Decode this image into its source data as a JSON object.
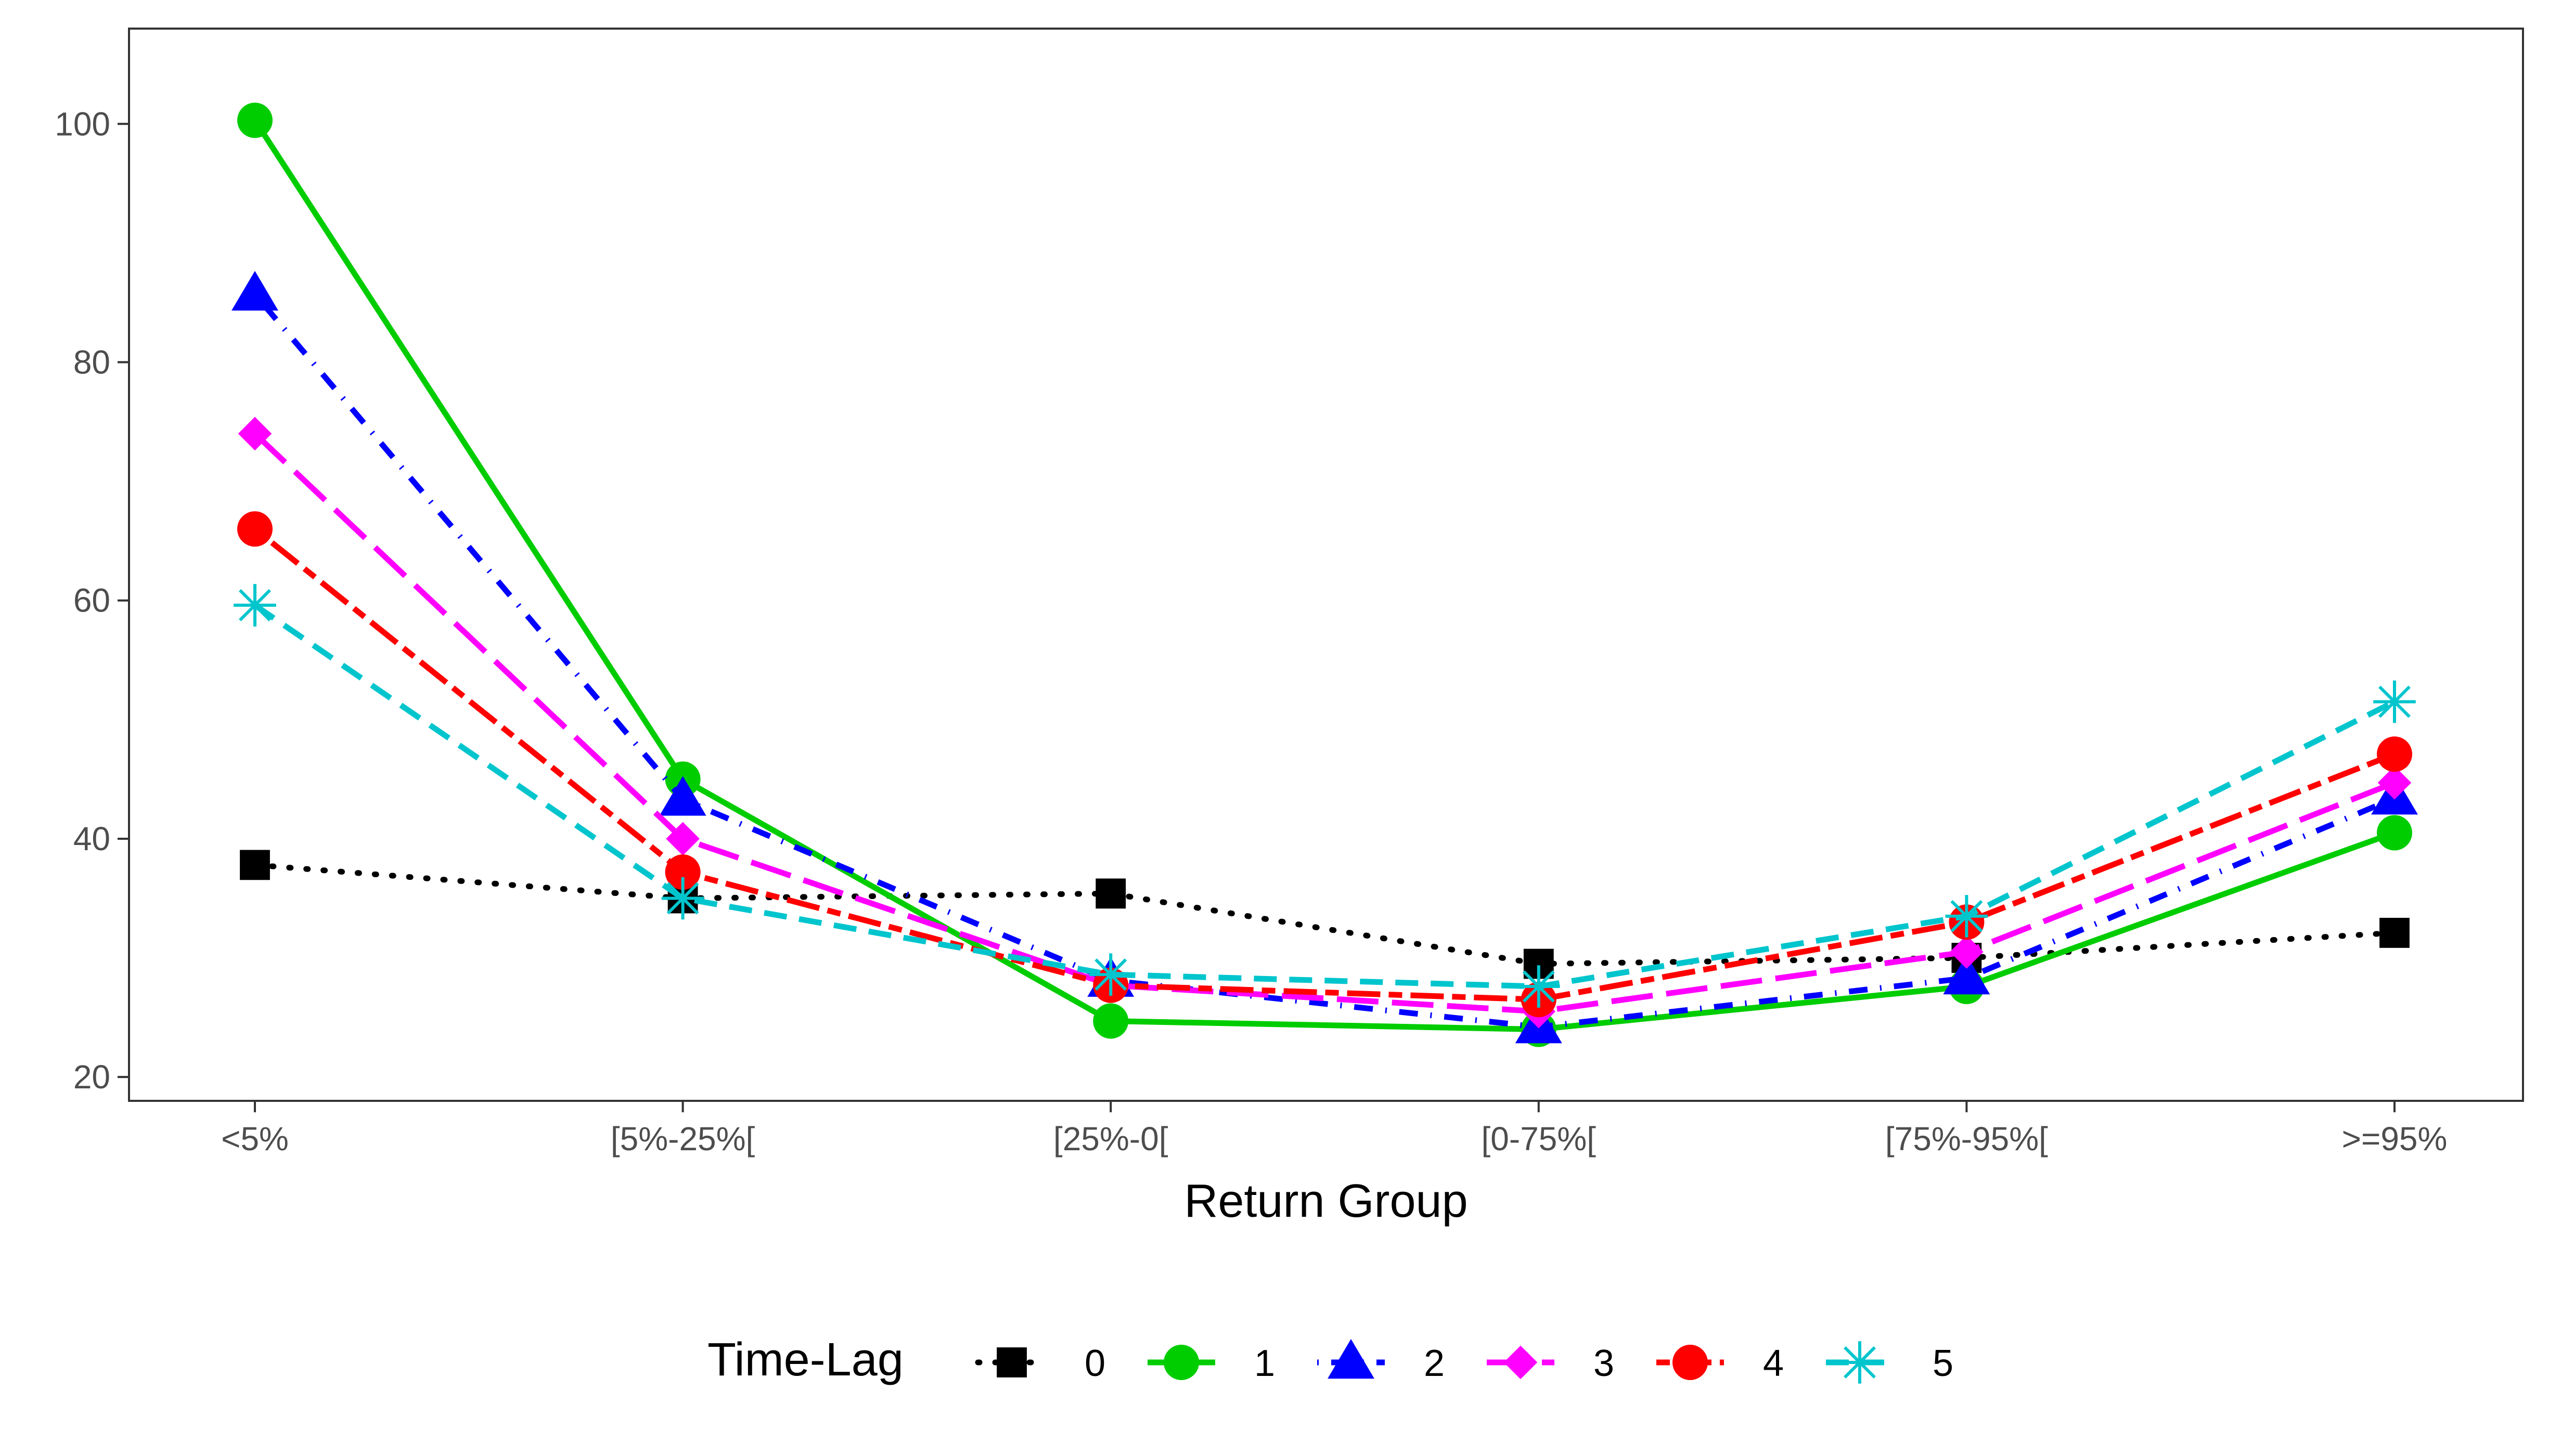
{
  "chart_data": {
    "type": "line",
    "xlabel": "Return Group",
    "ylabel": "",
    "categories": [
      "<5%",
      "[5%-25%[",
      "[25%-0[",
      "[0-75%[",
      "[75%-95%[",
      ">=95%"
    ],
    "ylim": [
      18,
      108
    ],
    "yticks": [
      20,
      40,
      60,
      80,
      100
    ],
    "grid": false,
    "legend": {
      "title": "Time-Lag",
      "position": "bottom"
    },
    "series": [
      {
        "name": "0",
        "color": "#000000",
        "marker": "square",
        "dash": "dotted",
        "values": [
          37.8,
          35.0,
          35.4,
          29.5,
          30.0,
          32.1
        ]
      },
      {
        "name": "1",
        "color": "#00cd00",
        "marker": "circle",
        "dash": "solid",
        "values": [
          100.3,
          45.0,
          24.7,
          24.0,
          27.6,
          40.5
        ]
      },
      {
        "name": "2",
        "color": "#0000ff",
        "marker": "triangle",
        "dash": "dotdash",
        "values": [
          85.7,
          43.3,
          28.1,
          24.2,
          28.3,
          43.4
        ]
      },
      {
        "name": "3",
        "color": "#ff00ff",
        "marker": "diamond",
        "dash": "longdash",
        "values": [
          74.0,
          40.0,
          27.7,
          25.5,
          30.5,
          44.7
        ]
      },
      {
        "name": "4",
        "color": "#ff0000",
        "marker": "circle",
        "dash": "twodash",
        "values": [
          66.0,
          37.2,
          27.7,
          26.5,
          33.0,
          47.1
        ]
      },
      {
        "name": "5",
        "color": "#00c5cd",
        "marker": "asterisk",
        "dash": "dashed",
        "values": [
          59.6,
          35.0,
          28.6,
          27.6,
          33.5,
          51.5
        ]
      }
    ]
  }
}
